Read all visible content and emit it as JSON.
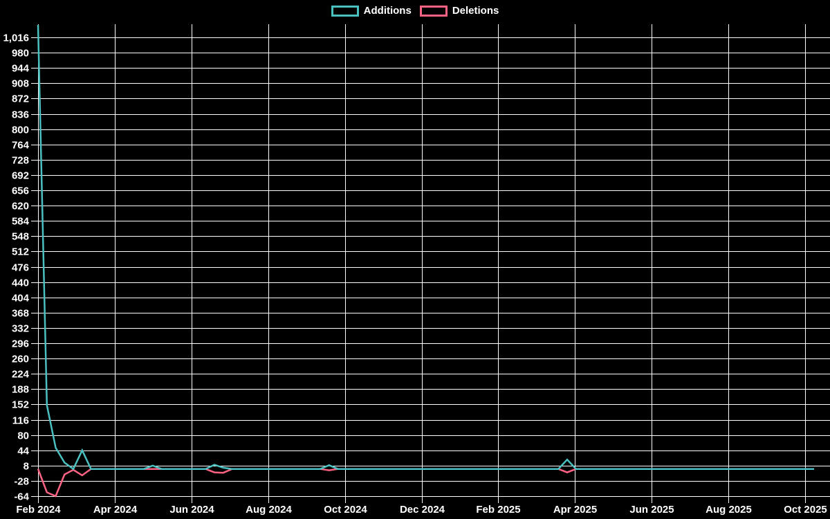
{
  "background": "#000000",
  "chart_data": {
    "type": "line",
    "title": "",
    "legend_position": "top",
    "grid": true,
    "grid_color": "#ffffff",
    "text_color": "#ffffff",
    "x_axis": {
      "tick_labels": [
        "Feb 2024",
        "Apr 2024",
        "Jun 2024",
        "Aug 2024",
        "Oct 2024",
        "Dec 2024",
        "Feb 2025",
        "Apr 2025",
        "Jun 2025",
        "Aug 2025",
        "Oct 2025"
      ],
      "points_interval": "weekly"
    },
    "y_axis": {
      "min": -64,
      "max": 1016,
      "step": 36,
      "tick_values": [
        1016,
        980,
        944,
        908,
        872,
        836,
        800,
        764,
        728,
        692,
        656,
        620,
        584,
        548,
        512,
        476,
        440,
        404,
        368,
        332,
        296,
        260,
        224,
        188,
        152,
        116,
        80,
        44,
        8,
        -28,
        -64
      ]
    },
    "series": [
      {
        "name": "Additions",
        "color": "#4bc0c0",
        "values": [
          1045,
          150,
          50,
          15,
          0,
          44,
          0,
          0,
          0,
          0,
          0,
          0,
          0,
          8,
          0,
          0,
          0,
          0,
          0,
          0,
          10,
          3,
          0,
          0,
          0,
          0,
          0,
          0,
          0,
          0,
          0,
          0,
          0,
          9,
          0,
          0,
          0,
          0,
          0,
          0,
          0,
          0,
          0,
          0,
          0,
          0,
          0,
          0,
          0,
          0,
          0,
          0,
          0,
          0,
          0,
          0,
          0,
          0,
          0,
          0,
          22,
          0,
          0,
          0,
          0,
          0,
          0,
          0,
          0,
          0,
          0,
          0,
          0,
          0,
          0,
          0,
          0,
          0,
          0,
          0,
          0,
          0,
          0,
          0,
          0,
          0,
          0,
          0,
          0
        ]
      },
      {
        "name": "Deletions",
        "color": "#ff6384",
        "values": [
          0,
          -55,
          -64,
          -13,
          -2,
          -15,
          0,
          0,
          0,
          0,
          0,
          0,
          0,
          0,
          0,
          0,
          0,
          0,
          0,
          0,
          -8,
          -9,
          0,
          0,
          0,
          0,
          0,
          0,
          0,
          0,
          0,
          0,
          0,
          -3,
          0,
          0,
          0,
          0,
          0,
          0,
          0,
          0,
          0,
          0,
          0,
          0,
          0,
          0,
          0,
          0,
          0,
          0,
          0,
          0,
          0,
          0,
          0,
          0,
          0,
          0,
          -8,
          0,
          0,
          0,
          0,
          0,
          0,
          0,
          0,
          0,
          0,
          0,
          0,
          0,
          0,
          0,
          0,
          0,
          0,
          0,
          0,
          0,
          0,
          0,
          0,
          0,
          0,
          0,
          0
        ]
      }
    ]
  }
}
